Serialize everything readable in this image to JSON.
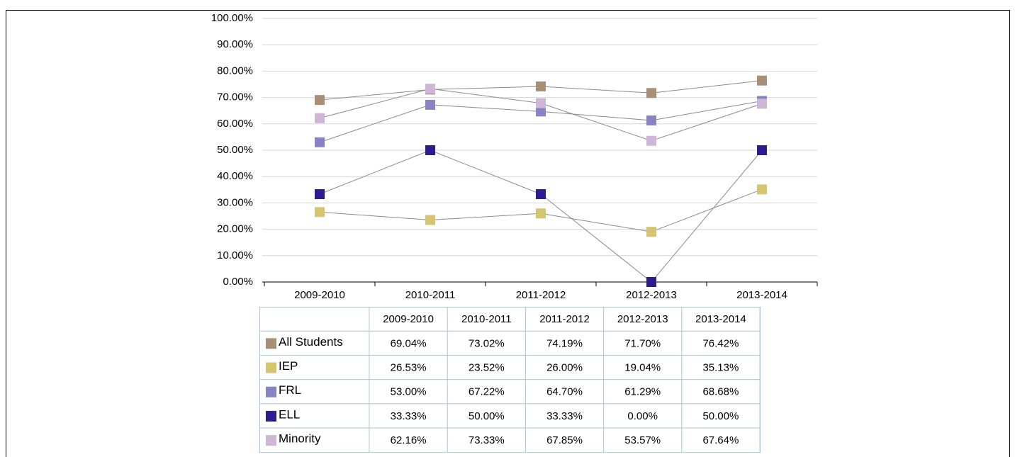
{
  "chart_data": {
    "type": "line",
    "categories": [
      "2009-2010",
      "2010-2011",
      "2011-2012",
      "2012-2013",
      "2013-2014"
    ],
    "ylim": [
      0,
      100
    ],
    "yticks": [
      {
        "value": 0,
        "label": "0.00%"
      },
      {
        "value": 10,
        "label": "10.00%"
      },
      {
        "value": 20,
        "label": "20.00%"
      },
      {
        "value": 30,
        "label": "30.00%"
      },
      {
        "value": 40,
        "label": "40.00%"
      },
      {
        "value": 50,
        "label": "50.00%"
      },
      {
        "value": 60,
        "label": "60.00%"
      },
      {
        "value": 70,
        "label": "70.00%"
      },
      {
        "value": 80,
        "label": "80.00%"
      },
      {
        "value": 90,
        "label": "90.00%"
      },
      {
        "value": 100,
        "label": "100.00%"
      }
    ],
    "grid": true,
    "line_color": "#8a8a8a",
    "series": [
      {
        "name": "All Students",
        "color": "#a89078",
        "values": [
          69.04,
          73.02,
          74.19,
          71.7,
          76.42
        ],
        "value_labels": [
          "69.04%",
          "73.02%",
          "74.19%",
          "71.70%",
          "76.42%"
        ]
      },
      {
        "name": "IEP",
        "color": "#d4c56e",
        "values": [
          26.53,
          23.52,
          26.0,
          19.04,
          35.13
        ],
        "value_labels": [
          "26.53%",
          "23.52%",
          "26.00%",
          "19.04%",
          "35.13%"
        ]
      },
      {
        "name": "FRL",
        "color": "#8884c4",
        "values": [
          53.0,
          67.22,
          64.7,
          61.29,
          68.68
        ],
        "value_labels": [
          "53.00%",
          "67.22%",
          "64.70%",
          "61.29%",
          "68.68%"
        ]
      },
      {
        "name": "ELL",
        "color": "#2e1c8e",
        "values": [
          33.33,
          50.0,
          33.33,
          0.0,
          50.0
        ],
        "value_labels": [
          "33.33%",
          "50.00%",
          "33.33%",
          "0.00%",
          "50.00%"
        ]
      },
      {
        "name": "Minority",
        "color": "#cdb6d6",
        "values": [
          62.16,
          73.33,
          67.85,
          53.57,
          67.64
        ],
        "value_labels": [
          "62.16%",
          "73.33%",
          "67.85%",
          "53.57%",
          "67.64%"
        ]
      }
    ]
  }
}
